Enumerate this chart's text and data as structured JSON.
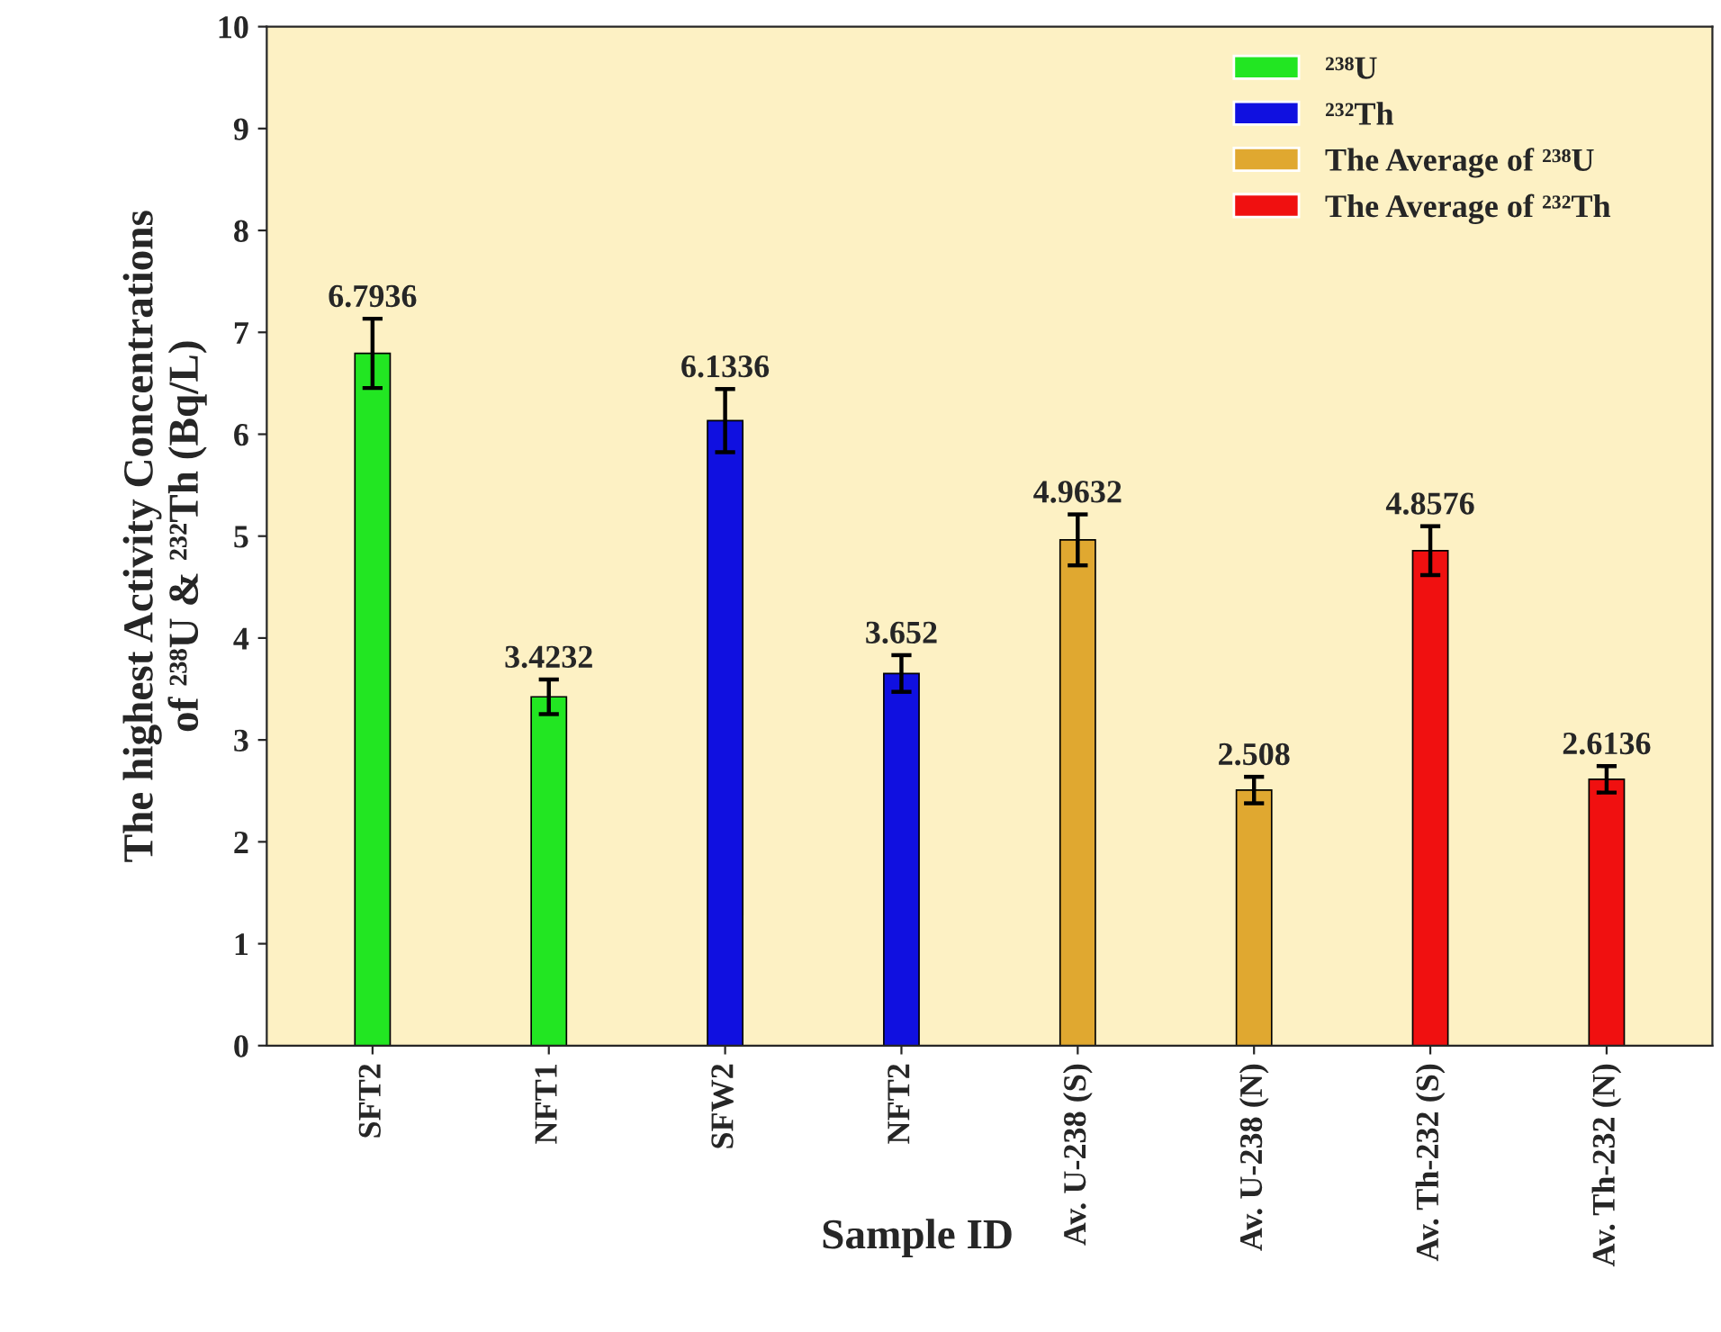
{
  "chart_data": {
    "type": "bar",
    "xlabel": "Sample ID",
    "ylabel": "The highest Activity Concentrations\nof ²³⁸U & ²³²Th (Bq/L)",
    "categories": [
      "SFT2",
      "NFT1",
      "SFW2",
      "NFT2",
      "Av. U-238 (S)",
      "Av. U-238 (N)",
      "Av. Th-232 (S)",
      "Av. Th-232 (N)"
    ],
    "series": [
      {
        "name": "²³⁸U",
        "color": "#22e622",
        "values": [
          6.7936,
          3.4232,
          null,
          null,
          null,
          null,
          null,
          null
        ],
        "errors": [
          0.34,
          0.17,
          null,
          null,
          null,
          null,
          null,
          null
        ]
      },
      {
        "name": "²³²Th",
        "color": "#1010e0",
        "values": [
          null,
          null,
          6.1336,
          3.652,
          null,
          null,
          null,
          null
        ],
        "errors": [
          null,
          null,
          0.31,
          0.18,
          null,
          null,
          null,
          null
        ]
      },
      {
        "name": "The Average of ²³⁸U",
        "color": "#e0a830",
        "values": [
          null,
          null,
          null,
          null,
          4.9632,
          2.508,
          null,
          null
        ],
        "errors": [
          null,
          null,
          null,
          null,
          0.25,
          0.13,
          null,
          null
        ]
      },
      {
        "name": "The Average of ²³²Th",
        "color": "#f01010",
        "values": [
          null,
          null,
          null,
          null,
          null,
          null,
          4.8576,
          2.6136
        ],
        "errors": [
          null,
          null,
          null,
          null,
          null,
          null,
          0.24,
          0.13
        ]
      }
    ],
    "ylim": [
      0,
      10
    ],
    "yticks": [
      0,
      1,
      2,
      3,
      4,
      5,
      6,
      7,
      8,
      9,
      10
    ],
    "data_labels": true,
    "legend": "top right",
    "grid": false
  }
}
